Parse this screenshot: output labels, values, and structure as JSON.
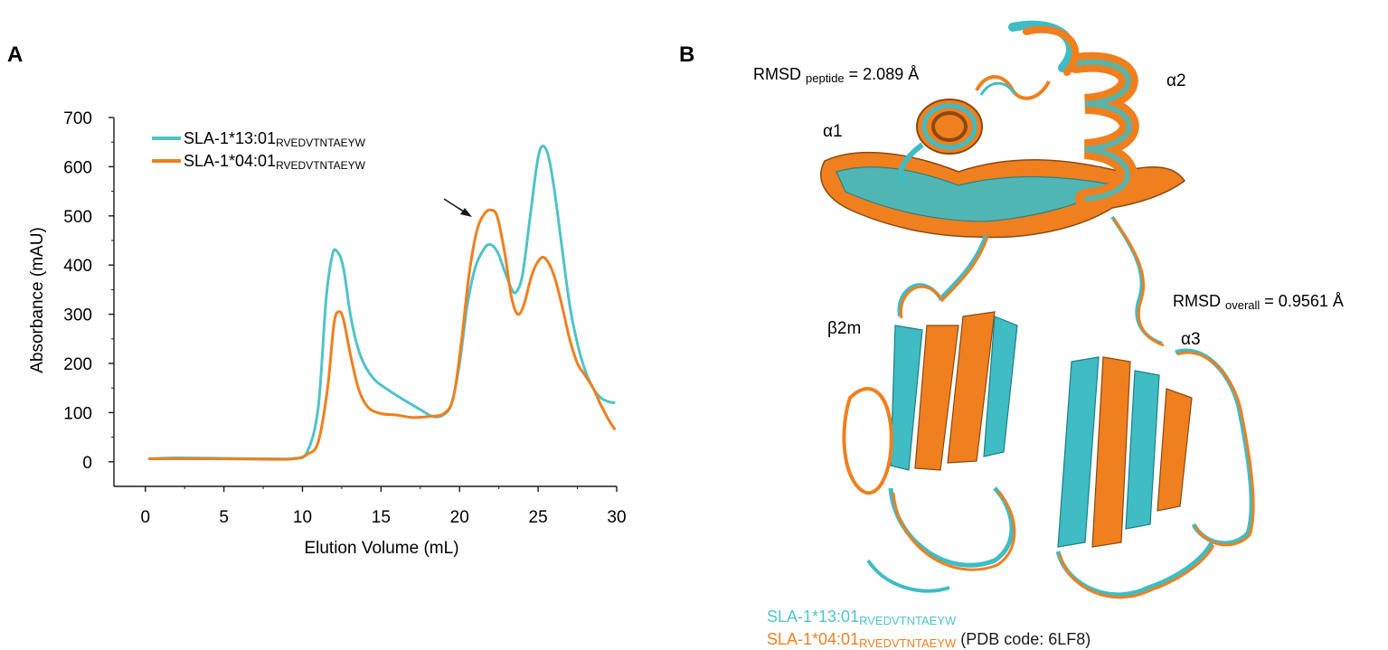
{
  "panels": {
    "a_label": "A",
    "b_label": "B"
  },
  "chart_data": {
    "type": "line",
    "title": "",
    "xlabel": "Elution Volume (mL)",
    "ylabel": "Absorbance (mAU)",
    "xlim": [
      -2,
      30
    ],
    "ylim": [
      -50,
      700
    ],
    "x_ticks": [
      0,
      5,
      10,
      15,
      20,
      25,
      30
    ],
    "y_ticks": [
      0,
      100,
      200,
      300,
      400,
      500,
      600,
      700
    ],
    "grid": false,
    "legend_position": "top-left",
    "annotations": [
      {
        "type": "arrow",
        "x": 21.9,
        "y": 505,
        "text": ""
      }
    ],
    "series": [
      {
        "name": "SLA-1*13:01",
        "name_subscript": "RVEDVTNTAEYW",
        "color": "#4fc3c9",
        "points": [
          [
            0.2,
            6
          ],
          [
            2,
            8
          ],
          [
            5,
            7
          ],
          [
            8,
            6
          ],
          [
            9.5,
            7
          ],
          [
            10.3,
            20
          ],
          [
            11,
            110
          ],
          [
            11.5,
            330
          ],
          [
            11.9,
            420
          ],
          [
            12.2,
            428
          ],
          [
            12.6,
            395
          ],
          [
            13.1,
            290
          ],
          [
            13.7,
            215
          ],
          [
            14.5,
            170
          ],
          [
            15.5,
            145
          ],
          [
            16.5,
            125
          ],
          [
            17.5,
            106
          ],
          [
            18.3,
            92
          ],
          [
            19,
            96
          ],
          [
            19.5,
            120
          ],
          [
            20,
            200
          ],
          [
            20.5,
            320
          ],
          [
            21,
            395
          ],
          [
            21.5,
            430
          ],
          [
            21.9,
            442
          ],
          [
            22.4,
            427
          ],
          [
            22.9,
            385
          ],
          [
            23.3,
            352
          ],
          [
            23.6,
            345
          ],
          [
            24,
            380
          ],
          [
            24.5,
            500
          ],
          [
            24.9,
            600
          ],
          [
            25.2,
            640
          ],
          [
            25.6,
            628
          ],
          [
            26,
            560
          ],
          [
            26.5,
            440
          ],
          [
            27,
            320
          ],
          [
            27.5,
            240
          ],
          [
            28,
            185
          ],
          [
            28.5,
            150
          ],
          [
            29,
            130
          ],
          [
            29.5,
            122
          ],
          [
            29.9,
            120
          ]
        ]
      },
      {
        "name": "SLA-1*04:01",
        "name_subscript": "RVEDVTNTAEYW",
        "color": "#f07f1e",
        "points": [
          [
            0.2,
            6
          ],
          [
            2,
            6
          ],
          [
            5,
            6
          ],
          [
            8,
            5
          ],
          [
            9.5,
            6
          ],
          [
            10.3,
            15
          ],
          [
            11,
            40
          ],
          [
            11.6,
            150
          ],
          [
            12,
            280
          ],
          [
            12.3,
            305
          ],
          [
            12.6,
            290
          ],
          [
            13.1,
            210
          ],
          [
            13.6,
            145
          ],
          [
            14.2,
            110
          ],
          [
            15,
            98
          ],
          [
            16,
            95
          ],
          [
            17,
            90
          ],
          [
            18,
            92
          ],
          [
            19,
            98
          ],
          [
            19.6,
            130
          ],
          [
            20.1,
            240
          ],
          [
            20.6,
            380
          ],
          [
            21.1,
            470
          ],
          [
            21.6,
            505
          ],
          [
            22,
            512
          ],
          [
            22.4,
            498
          ],
          [
            22.9,
            420
          ],
          [
            23.3,
            335
          ],
          [
            23.7,
            300
          ],
          [
            24.1,
            320
          ],
          [
            24.6,
            380
          ],
          [
            25.1,
            412
          ],
          [
            25.5,
            412
          ],
          [
            26,
            380
          ],
          [
            26.5,
            320
          ],
          [
            27,
            250
          ],
          [
            27.5,
            200
          ],
          [
            28,
            175
          ],
          [
            28.5,
            150
          ],
          [
            29,
            115
          ],
          [
            29.5,
            85
          ],
          [
            29.9,
            65
          ]
        ]
      }
    ]
  },
  "structure": {
    "rmsd_peptide_prefix": "RMSD ",
    "rmsd_peptide_sub": "peptide",
    "rmsd_peptide_value": " = 2.089 Å",
    "rmsd_overall_prefix": "RMSD ",
    "rmsd_overall_sub": "overall",
    "rmsd_overall_value": " = 0.9561 Å",
    "labels": {
      "alpha1": "α1",
      "alpha2": "α2",
      "alpha3": "α3",
      "b2m": "β2m"
    },
    "legend": [
      {
        "name": "SLA-1*13:01",
        "sub": "RVEDVTNTAEYW",
        "suffix": "",
        "color": "#4fc3c9"
      },
      {
        "name": "SLA-1*04:01",
        "sub": "RVEDVTNTAEYW",
        "suffix": " (PDB code: 6LF8)",
        "color": "#f07f1e"
      }
    ]
  }
}
